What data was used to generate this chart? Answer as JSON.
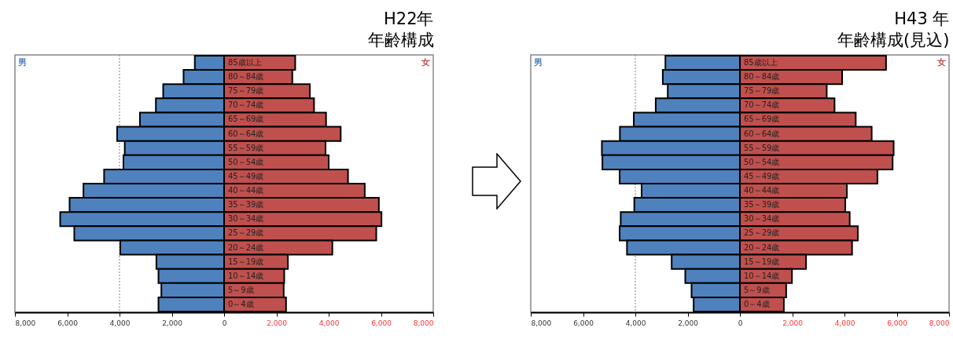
{
  "chart_data": [
    {
      "type": "bar",
      "orientation": "horizontal",
      "stacked": true,
      "title": "H22年",
      "subtitle": "年齢構成",
      "categories": [
        "85歳以上",
        "80～84歳",
        "75～79歳",
        "70～74歳",
        "65～69歳",
        "60～64歳",
        "55～59歳",
        "50～54歳",
        "45～49歳",
        "40～44歳",
        "35～39歳",
        "30～34歳",
        "25～29歳",
        "20～24歳",
        "15～19歳",
        "10～14歳",
        "5～9歳",
        "0～4歳"
      ],
      "series": [
        {
          "name": "男",
          "color": "#4f81bd",
          "values": [
            -1120,
            -1550,
            -2330,
            -2610,
            -3220,
            -4090,
            -3800,
            -3850,
            -4590,
            -5380,
            -5910,
            -6270,
            -5730,
            -3970,
            -2590,
            -2510,
            -2400,
            -2510
          ]
        },
        {
          "name": "女",
          "color": "#c0504d",
          "values": [
            2720,
            2610,
            3280,
            3440,
            3900,
            4460,
            3880,
            4000,
            4740,
            5380,
            5920,
            6020,
            5820,
            4140,
            2440,
            2300,
            2280,
            2370
          ]
        }
      ],
      "xlim": [
        -8000,
        8000
      ],
      "xticks": [
        {
          "value": -8000,
          "label": "8,000"
        },
        {
          "value": -6000,
          "label": "6,000"
        },
        {
          "value": -4000,
          "label": "4,000"
        },
        {
          "value": -2000,
          "label": "2,000"
        },
        0,
        {
          "value": 2000,
          "label": "2,000"
        },
        {
          "value": 4000,
          "label": "4,000"
        },
        {
          "value": 6000,
          "label": "6,000"
        },
        {
          "value": 8000,
          "label": "8,000"
        }
      ],
      "ref_lines": [
        {
          "axis": "x",
          "value": -4000,
          "line_style": "dotted",
          "color": "#808080"
        }
      ]
    },
    {
      "type": "bar",
      "orientation": "horizontal",
      "stacked": true,
      "title": "H43 年",
      "subtitle": "年齢構成(見込)",
      "categories": [
        "85歳以上",
        "80～84歳",
        "75～79歳",
        "70～74歳",
        "65～69歳",
        "60～64歳",
        "55～59歳",
        "50～54歳",
        "45～49歳",
        "40～44歳",
        "35～39歳",
        "30～34歳",
        "25～29歳",
        "20～24歳",
        "15～19歳",
        "10～14歳",
        "5～9歳",
        "0～4歳"
      ],
      "series": [
        {
          "name": "男",
          "color": "#4f81bd",
          "values": [
            -2850,
            -2950,
            -2760,
            -3220,
            -4060,
            -4590,
            -5280,
            -5260,
            -4600,
            -3760,
            -4040,
            -4560,
            -4600,
            -4320,
            -2610,
            -2090,
            -1850,
            -1770
          ]
        },
        {
          "name": "女",
          "color": "#c0504d",
          "values": [
            5590,
            3910,
            3320,
            3620,
            4430,
            5040,
            5880,
            5840,
            5260,
            4090,
            4030,
            4200,
            4510,
            4290,
            2530,
            1990,
            1770,
            1680
          ]
        }
      ],
      "xlim": [
        -8000,
        8000
      ],
      "xticks": [
        {
          "value": -8000,
          "label": "8,000"
        },
        {
          "value": -6000,
          "label": "6,000"
        },
        {
          "value": -4000,
          "label": "4,000"
        },
        {
          "value": -2000,
          "label": "2,000"
        },
        0,
        {
          "value": 2000,
          "label": "2,000"
        },
        {
          "value": 4000,
          "label": "4,000"
        },
        {
          "value": 6000,
          "label": "6,000"
        },
        {
          "value": 8000,
          "label": "8,000"
        }
      ],
      "ref_lines": [
        {
          "axis": "x",
          "value": -4000,
          "line_style": "dotted",
          "color": "#808080"
        }
      ]
    }
  ]
}
